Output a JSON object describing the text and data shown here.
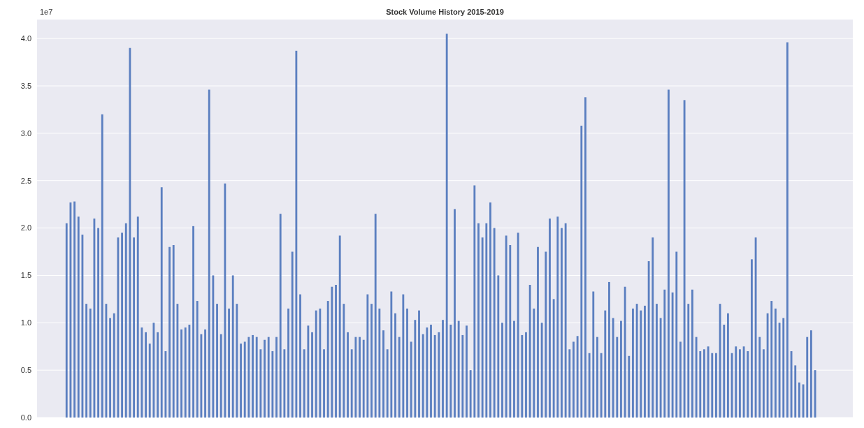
{
  "chart_data": {
    "type": "bar",
    "title": "Stock Volume History 2015-2019",
    "annotations": [
      "1e7"
    ],
    "color": "#5b7fc0",
    "grid": "y",
    "ylim": [
      0,
      4.2
    ],
    "yticks": [
      {
        "value": 0,
        "label": "0.0"
      },
      {
        "value": 0.5,
        "label": "0.5"
      },
      {
        "value": 1,
        "label": "1.0"
      },
      {
        "value": 1.5,
        "label": "1.5"
      },
      {
        "value": 2,
        "label": "2.0"
      },
      {
        "value": 2.5,
        "label": "2.5"
      },
      {
        "value": 3,
        "label": "3.0"
      },
      {
        "value": 3.5,
        "label": "3.5"
      },
      {
        "value": 4,
        "label": "4.0"
      }
    ],
    "values": [
      2.05,
      2.27,
      2.28,
      2.12,
      1.93,
      1.2,
      1.15,
      2.1,
      2.0,
      3.2,
      1.2,
      1.05,
      1.1,
      1.9,
      1.95,
      2.05,
      3.9,
      1.9,
      2.12,
      0.95,
      0.9,
      0.78,
      1.0,
      0.9,
      2.43,
      0.7,
      1.8,
      1.82,
      1.2,
      0.93,
      0.95,
      0.98,
      2.02,
      1.23,
      0.88,
      0.93,
      3.46,
      1.5,
      1.2,
      0.88,
      2.47,
      1.15,
      1.5,
      1.2,
      0.78,
      0.8,
      0.85,
      0.87,
      0.85,
      0.72,
      0.82,
      0.85,
      0.7,
      0.85,
      2.15,
      0.72,
      1.15,
      1.75,
      3.87,
      1.3,
      0.72,
      0.97,
      0.9,
      1.13,
      1.15,
      0.72,
      1.23,
      1.38,
      1.4,
      1.92,
      1.2,
      0.9,
      0.72,
      0.85,
      0.85,
      0.82,
      1.3,
      1.2,
      2.15,
      1.15,
      0.92,
      0.72,
      1.33,
      1.1,
      0.85,
      1.3,
      1.15,
      0.8,
      1.03,
      1.13,
      0.88,
      0.95,
      0.98,
      0.87,
      0.9,
      1.03,
      4.05,
      0.98,
      2.2,
      1.02,
      0.87,
      0.97,
      0.5,
      2.45,
      2.05,
      1.9,
      2.05,
      2.27,
      2.0,
      1.5,
      1.0,
      1.92,
      1.82,
      1.02,
      1.95,
      0.87,
      0.9,
      1.4,
      1.15,
      1.8,
      1.0,
      1.75,
      2.1,
      1.25,
      2.12,
      2.0,
      2.05,
      0.72,
      0.8,
      0.86,
      3.08,
      3.38,
      0.68,
      1.33,
      0.85,
      0.68,
      1.13,
      1.43,
      1.05,
      0.85,
      1.02,
      1.38,
      0.65,
      1.15,
      1.2,
      1.13,
      1.18,
      1.65,
      1.9,
      1.2,
      1.05,
      1.35,
      3.46,
      1.32,
      1.75,
      0.8,
      3.35,
      1.2,
      1.35,
      0.85,
      0.7,
      0.72,
      0.75,
      0.68,
      0.68,
      1.2,
      0.98,
      1.1,
      0.68,
      0.75,
      0.72,
      0.75,
      0.7,
      1.67,
      1.9,
      0.85,
      0.72,
      1.1,
      1.23,
      1.15,
      1.0,
      1.05,
      3.96,
      0.7,
      0.55,
      0.37,
      0.35,
      0.85,
      0.92,
      0.5
    ],
    "categories": [
      null,
      null,
      null,
      null,
      null,
      null,
      null,
      null,
      null,
      null,
      null,
      null,
      null,
      null,
      null,
      null,
      null,
      null,
      null,
      null,
      null,
      null,
      null,
      null,
      null,
      null,
      null,
      null,
      null,
      null,
      null,
      null,
      null,
      null,
      null,
      null,
      null,
      null,
      null,
      null,
      null,
      null,
      null,
      null,
      null,
      null,
      null,
      null,
      null,
      null,
      null,
      null,
      null,
      null,
      null,
      null,
      null,
      null,
      null,
      null,
      null,
      null,
      null,
      null,
      null,
      null,
      null,
      null,
      null,
      null,
      null,
      null,
      null,
      null,
      null,
      null,
      null,
      null,
      null,
      null,
      null,
      null,
      null,
      null,
      null,
      null,
      null,
      null,
      null,
      null,
      null,
      null,
      null,
      null,
      null,
      null,
      null,
      null,
      null,
      null,
      null,
      null,
      null,
      null,
      null,
      null,
      null,
      null,
      null,
      null,
      null,
      null,
      null,
      null,
      null,
      null,
      null,
      null,
      null,
      null,
      null,
      null,
      null,
      null,
      null,
      null,
      null,
      null,
      null,
      null,
      null,
      null,
      null,
      null,
      null,
      null,
      null,
      null,
      null,
      null,
      null,
      null,
      null,
      null,
      null,
      null,
      null,
      null,
      null,
      null,
      null,
      null,
      null,
      null,
      null,
      null,
      null,
      null,
      null,
      null,
      null,
      null,
      null,
      null,
      null,
      null,
      null,
      null,
      null,
      null,
      null,
      null,
      null,
      null,
      null,
      null,
      null,
      null,
      null,
      null,
      null,
      null,
      null,
      null,
      null,
      null,
      null,
      null,
      null,
      null
    ]
  }
}
